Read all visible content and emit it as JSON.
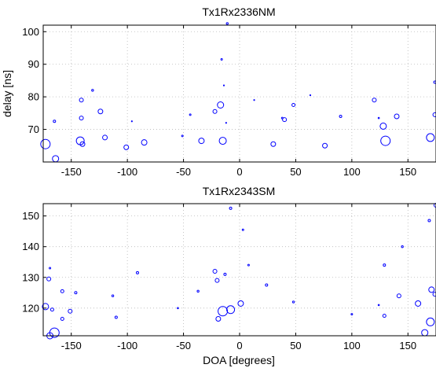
{
  "chart_data": [
    {
      "type": "scatter",
      "title": "Tx1Rx2336NM",
      "xlabel": "",
      "ylabel": "delay [ns]",
      "xlim": [
        -175,
        175
      ],
      "ylim": [
        60,
        102
      ],
      "xticks": [
        -150,
        -100,
        -50,
        0,
        50,
        100,
        150
      ],
      "yticks": [
        70,
        80,
        90,
        100
      ],
      "grid": true,
      "marker": "circle",
      "color": "#0000ff",
      "points": [
        {
          "x": -173,
          "y": 65.5,
          "s": 6
        },
        {
          "x": -164,
          "y": 61.0,
          "s": 4
        },
        {
          "x": -165,
          "y": 72.5,
          "s": 1.5
        },
        {
          "x": -142,
          "y": 66.5,
          "s": 5
        },
        {
          "x": -140,
          "y": 65.5,
          "s": 3
        },
        {
          "x": -141,
          "y": 73.5,
          "s": 2.5
        },
        {
          "x": -141,
          "y": 79.0,
          "s": 2.5
        },
        {
          "x": -131,
          "y": 82.0,
          "s": 1.2
        },
        {
          "x": -124,
          "y": 75.5,
          "s": 3
        },
        {
          "x": -120,
          "y": 67.5,
          "s": 3
        },
        {
          "x": -101,
          "y": 64.5,
          "s": 3
        },
        {
          "x": -96,
          "y": 72.5,
          "s": 0.6
        },
        {
          "x": -85,
          "y": 66.0,
          "s": 3.5
        },
        {
          "x": -51,
          "y": 68.0,
          "s": 1
        },
        {
          "x": -44,
          "y": 74.5,
          "s": 1
        },
        {
          "x": -34,
          "y": 66.5,
          "s": 3.5
        },
        {
          "x": -22,
          "y": 75.5,
          "s": 2.5
        },
        {
          "x": -17,
          "y": 77.5,
          "s": 4
        },
        {
          "x": -15,
          "y": 66.5,
          "s": 4.5
        },
        {
          "x": -16,
          "y": 91.5,
          "s": 1
        },
        {
          "x": -11,
          "y": 102.5,
          "s": 1.2
        },
        {
          "x": -12,
          "y": 72.0,
          "s": 0.5
        },
        {
          "x": -14,
          "y": 83.5,
          "s": 0.5
        },
        {
          "x": 13,
          "y": 79.0,
          "s": 0.6
        },
        {
          "x": 30,
          "y": 65.5,
          "s": 3
        },
        {
          "x": 38,
          "y": 73.5,
          "s": 1
        },
        {
          "x": 40,
          "y": 73.0,
          "s": 2.5
        },
        {
          "x": 48,
          "y": 77.5,
          "s": 2
        },
        {
          "x": 63,
          "y": 80.5,
          "s": 0.5
        },
        {
          "x": 76,
          "y": 65.0,
          "s": 3
        },
        {
          "x": 90,
          "y": 74.0,
          "s": 1.5
        },
        {
          "x": 120,
          "y": 79.0,
          "s": 2.5
        },
        {
          "x": 124,
          "y": 73.5,
          "s": 0.8
        },
        {
          "x": 128,
          "y": 71.0,
          "s": 4
        },
        {
          "x": 130,
          "y": 66.5,
          "s": 6
        },
        {
          "x": 140,
          "y": 74.0,
          "s": 3
        },
        {
          "x": 170,
          "y": 67.5,
          "s": 5
        },
        {
          "x": 174,
          "y": 74.5,
          "s": 2.5
        },
        {
          "x": 174,
          "y": 84.5,
          "s": 1.5
        }
      ]
    },
    {
      "type": "scatter",
      "title": "Tx1Rx2343SM",
      "xlabel": "DOA [degrees]",
      "ylabel": "",
      "xlim": [
        -175,
        175
      ],
      "ylim": [
        111,
        154
      ],
      "xticks": [
        -150,
        -100,
        -50,
        0,
        50,
        100,
        150
      ],
      "yticks": [
        120,
        130,
        140,
        150
      ],
      "grid": true,
      "marker": "circle",
      "color": "#0000ff",
      "points": [
        {
          "x": -173,
          "y": 120.5,
          "s": 4
        },
        {
          "x": -169,
          "y": 111.0,
          "s": 4
        },
        {
          "x": -165,
          "y": 112.0,
          "s": 6
        },
        {
          "x": -170,
          "y": 129.5,
          "s": 2.5
        },
        {
          "x": -169,
          "y": 133.0,
          "s": 1
        },
        {
          "x": -167,
          "y": 119.5,
          "s": 2
        },
        {
          "x": -158,
          "y": 116.5,
          "s": 2
        },
        {
          "x": -158,
          "y": 125.5,
          "s": 2
        },
        {
          "x": -151,
          "y": 119.0,
          "s": 2.5
        },
        {
          "x": -146,
          "y": 125.0,
          "s": 1.5
        },
        {
          "x": -113,
          "y": 124.0,
          "s": 1.2
        },
        {
          "x": -110,
          "y": 117.0,
          "s": 1.5
        },
        {
          "x": -91,
          "y": 131.5,
          "s": 1.5
        },
        {
          "x": -55,
          "y": 120.0,
          "s": 0.8
        },
        {
          "x": -37,
          "y": 125.5,
          "s": 1.2
        },
        {
          "x": -22,
          "y": 132.0,
          "s": 2.5
        },
        {
          "x": -20,
          "y": 129.0,
          "s": 2.5
        },
        {
          "x": -19,
          "y": 116.5,
          "s": 3
        },
        {
          "x": -15,
          "y": 119.0,
          "s": 6
        },
        {
          "x": -13,
          "y": 131.0,
          "s": 1.5
        },
        {
          "x": -8,
          "y": 119.5,
          "s": 5
        },
        {
          "x": -8,
          "y": 152.5,
          "s": 1.5
        },
        {
          "x": 1,
          "y": 121.5,
          "s": 3.5
        },
        {
          "x": 3,
          "y": 145.5,
          "s": 1
        },
        {
          "x": 8,
          "y": 134.0,
          "s": 1
        },
        {
          "x": 24,
          "y": 127.5,
          "s": 1.5
        },
        {
          "x": 48,
          "y": 122.0,
          "s": 1.2
        },
        {
          "x": 100,
          "y": 118.0,
          "s": 1
        },
        {
          "x": 124,
          "y": 121.0,
          "s": 0.8
        },
        {
          "x": 129,
          "y": 117.5,
          "s": 2
        },
        {
          "x": 129,
          "y": 134.0,
          "s": 1.5
        },
        {
          "x": 142,
          "y": 124.0,
          "s": 2.5
        },
        {
          "x": 145,
          "y": 140.0,
          "s": 1.2
        },
        {
          "x": 159,
          "y": 121.5,
          "s": 3.5
        },
        {
          "x": 165,
          "y": 112.0,
          "s": 4
        },
        {
          "x": 170,
          "y": 115.5,
          "s": 5
        },
        {
          "x": 169,
          "y": 148.5,
          "s": 1.5
        },
        {
          "x": 171,
          "y": 126.0,
          "s": 3.5
        },
        {
          "x": 174,
          "y": 124.5,
          "s": 2.5
        },
        {
          "x": 175,
          "y": 153.5,
          "s": 2.5
        }
      ]
    }
  ]
}
